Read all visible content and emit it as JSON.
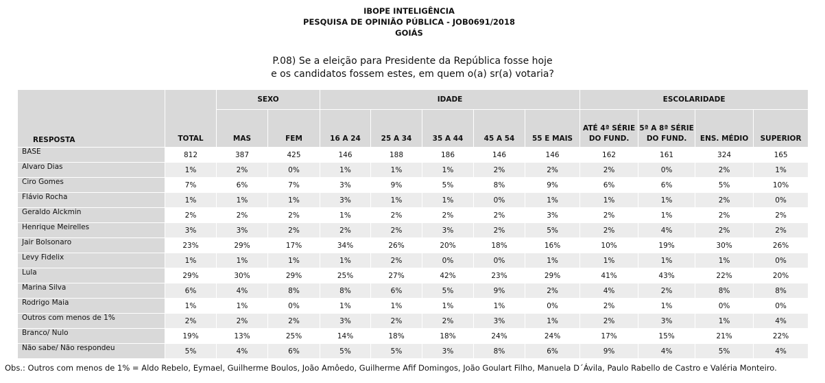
{
  "header": {
    "lines": [
      "IBOPE INTELIGÊNCIA",
      "PESQUISA DE OPINIÃO PÚBLICA - JOB0691/2018",
      "GOIÁS"
    ]
  },
  "question": {
    "lines": [
      "P.08) Se a eleição para Presidente da República fosse hoje",
      "e os candidatos fossem estes, em quem o(a) sr(a) votaria?"
    ]
  },
  "table": {
    "row_header": "RESPOSTA",
    "total": "TOTAL",
    "groups": [
      {
        "label": "SEXO",
        "columns": [
          [
            "MAS"
          ],
          [
            "FEM"
          ]
        ]
      },
      {
        "label": "IDADE",
        "columns": [
          [
            "16 A 24"
          ],
          [
            "25 A 34"
          ],
          [
            "35 A 44"
          ],
          [
            "45 A 54"
          ],
          [
            "55 E MAIS"
          ]
        ]
      },
      {
        "label": "ESCOLARIDADE",
        "columns": [
          [
            "ATÉ 4ª SÉRIE",
            "DO FUND."
          ],
          [
            "5ª A 8ª SÉRIE",
            "DO FUND."
          ],
          [
            "ENS. MÉDIO"
          ],
          [
            "SUPERIOR"
          ]
        ]
      }
    ],
    "rows": [
      {
        "label": "BASE",
        "cells": [
          "812",
          "387",
          "425",
          "146",
          "188",
          "186",
          "146",
          "146",
          "162",
          "161",
          "324",
          "165"
        ]
      },
      {
        "label": "Alvaro Dias",
        "cells": [
          "1%",
          "2%",
          "0%",
          "1%",
          "1%",
          "1%",
          "2%",
          "2%",
          "2%",
          "0%",
          "2%",
          "1%"
        ]
      },
      {
        "label": "Ciro Gomes",
        "cells": [
          "7%",
          "6%",
          "7%",
          "3%",
          "9%",
          "5%",
          "8%",
          "9%",
          "6%",
          "6%",
          "5%",
          "10%"
        ]
      },
      {
        "label": "Flávio Rocha",
        "cells": [
          "1%",
          "1%",
          "1%",
          "3%",
          "1%",
          "1%",
          "0%",
          "1%",
          "1%",
          "1%",
          "2%",
          "0%"
        ]
      },
      {
        "label": "Geraldo Alckmin",
        "cells": [
          "2%",
          "2%",
          "2%",
          "1%",
          "2%",
          "2%",
          "2%",
          "3%",
          "2%",
          "1%",
          "2%",
          "2%"
        ]
      },
      {
        "label": "Henrique Meirelles",
        "cells": [
          "3%",
          "3%",
          "2%",
          "2%",
          "2%",
          "3%",
          "2%",
          "5%",
          "2%",
          "4%",
          "2%",
          "2%"
        ]
      },
      {
        "label": "Jair Bolsonaro",
        "cells": [
          "23%",
          "29%",
          "17%",
          "34%",
          "26%",
          "20%",
          "18%",
          "16%",
          "10%",
          "19%",
          "30%",
          "26%"
        ]
      },
      {
        "label": "Levy Fidelix",
        "cells": [
          "1%",
          "1%",
          "1%",
          "1%",
          "2%",
          "0%",
          "0%",
          "1%",
          "1%",
          "1%",
          "1%",
          "0%"
        ]
      },
      {
        "label": "Lula",
        "cells": [
          "29%",
          "30%",
          "29%",
          "25%",
          "27%",
          "42%",
          "23%",
          "29%",
          "41%",
          "43%",
          "22%",
          "20%"
        ]
      },
      {
        "label": "Marina Silva",
        "cells": [
          "6%",
          "4%",
          "8%",
          "8%",
          "6%",
          "5%",
          "9%",
          "2%",
          "4%",
          "2%",
          "8%",
          "8%"
        ]
      },
      {
        "label": "Rodrigo Maia",
        "cells": [
          "1%",
          "1%",
          "0%",
          "1%",
          "1%",
          "1%",
          "1%",
          "0%",
          "2%",
          "1%",
          "0%",
          "0%"
        ]
      },
      {
        "label": "Outros com menos de 1%",
        "cells": [
          "2%",
          "2%",
          "2%",
          "3%",
          "2%",
          "2%",
          "3%",
          "1%",
          "2%",
          "3%",
          "1%",
          "4%"
        ]
      },
      {
        "label": "Branco/ Nulo",
        "cells": [
          "19%",
          "13%",
          "25%",
          "14%",
          "18%",
          "18%",
          "24%",
          "24%",
          "17%",
          "15%",
          "21%",
          "22%"
        ]
      },
      {
        "label": "Não sabe/ Não respondeu",
        "cells": [
          "5%",
          "4%",
          "6%",
          "5%",
          "5%",
          "3%",
          "8%",
          "6%",
          "9%",
          "4%",
          "5%",
          "4%"
        ]
      }
    ]
  },
  "footnote": "Obs.: Outros com menos de 1% = Aldo Rebelo, Eymael, Guilherme Boulos, João Amôedo, Guilherme Afif Domingos, João Goulart Filho, Manuela D´Ávila, Paulo Rabello de Castro e Valéria Monteiro."
}
